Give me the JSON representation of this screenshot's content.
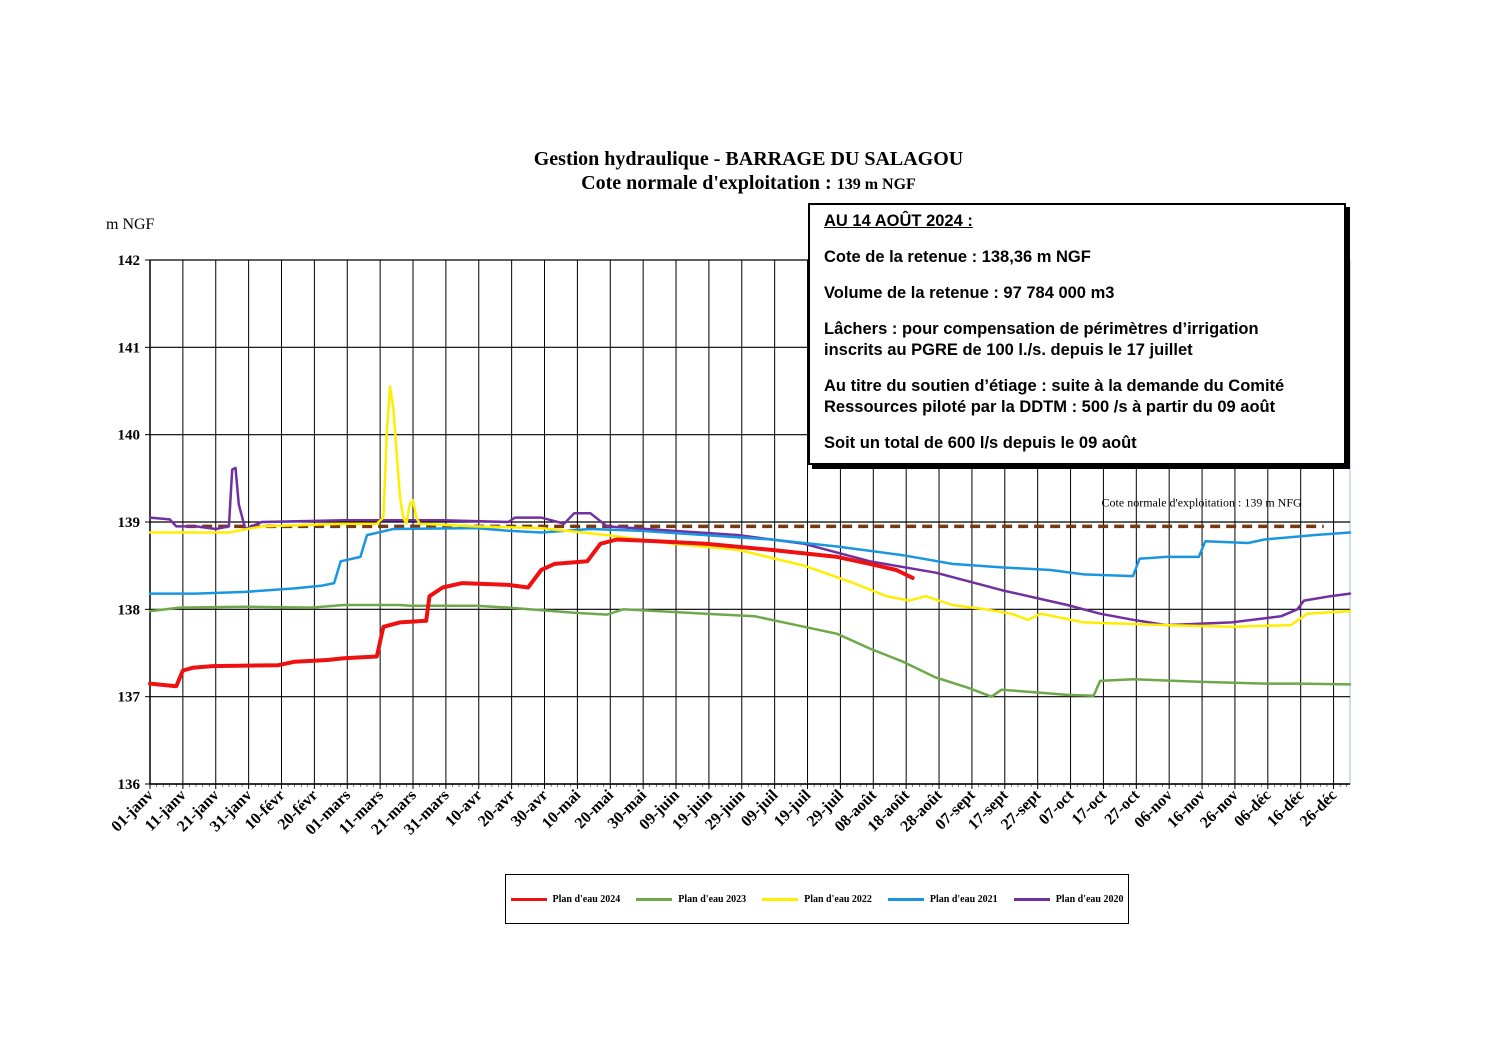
{
  "title": {
    "line1": "Gestion hydraulique - BARRAGE DU SALAGOU",
    "line2": "Cote normale d'exploitation : ",
    "line2_small": "139 m NGF"
  },
  "info_box": {
    "header": "AU 14 AOÛT 2024 :",
    "cote": "Cote de la retenue : 138,36 m NGF",
    "volume": "Volume de la retenue : 97 784 000 m3",
    "lachers_1": "Lâchers : pour compensation de périmètres d’irrigation",
    "lachers_2": "inscrits au PGRE de 100 l./s. depuis le 17 juillet",
    "soutien_1": "Au titre du soutien d’étiage : suite à la demande du Comité",
    "soutien_2": "Ressources piloté par la DDTM : 500 /s à partir du 09 août",
    "total": "Soit un total de 600 l/s depuis le 09 août"
  },
  "chart_data": {
    "type": "line",
    "title": "Gestion hydraulique - BARRAGE DU SALAGOU",
    "subtitle": "Cote normale d'exploitation : 139 m NGF",
    "ylabel": "m NGF",
    "xlabel": "",
    "ylim": [
      136,
      142
    ],
    "yticks": [
      136,
      137,
      138,
      139,
      140,
      141,
      142
    ],
    "xlim_day": [
      1,
      366
    ],
    "x_tick_labels": [
      "01-janv",
      "11-janv",
      "21-janv",
      "31-janv",
      "10-févr",
      "20-févr",
      "01-mars",
      "11-mars",
      "21-mars",
      "31-mars",
      "10-avr",
      "20-avr",
      "30-avr",
      "10-mai",
      "20-mai",
      "30-mai",
      "09-juin",
      "19-juin",
      "29-juin",
      "09-juil",
      "19-juil",
      "29-juil",
      "08-août",
      "18-août",
      "28-août",
      "07-sept",
      "17-sept",
      "27-sept",
      "07-oct",
      "17-oct",
      "27-oct",
      "06-nov",
      "16-nov",
      "26-nov",
      "06-déc",
      "16-déc",
      "26-déc"
    ],
    "grid": true,
    "legend_position": "bottom",
    "reference_line": {
      "label": "Cote normale d'exploitation : 139 m NFG",
      "value": 138.95,
      "x_start_day": 12,
      "x_end_day": 358,
      "color": "#7a3a10"
    },
    "series": [
      {
        "name": "Plan d'eau 2024",
        "color": "#ee1111",
        "width": 4,
        "points": [
          [
            1,
            137.15
          ],
          [
            9,
            137.12
          ],
          [
            11,
            137.3
          ],
          [
            14,
            137.33
          ],
          [
            20,
            137.35
          ],
          [
            40,
            137.36
          ],
          [
            45,
            137.4
          ],
          [
            55,
            137.42
          ],
          [
            60,
            137.44
          ],
          [
            70,
            137.46
          ],
          [
            72,
            137.8
          ],
          [
            77,
            137.85
          ],
          [
            85,
            137.87
          ],
          [
            86,
            138.15
          ],
          [
            90,
            138.25
          ],
          [
            96,
            138.3
          ],
          [
            110,
            138.28
          ],
          [
            116,
            138.25
          ],
          [
            120,
            138.45
          ],
          [
            124,
            138.52
          ],
          [
            134,
            138.55
          ],
          [
            138,
            138.75
          ],
          [
            143,
            138.8
          ],
          [
            155,
            138.78
          ],
          [
            170,
            138.75
          ],
          [
            190,
            138.68
          ],
          [
            210,
            138.6
          ],
          [
            220,
            138.52
          ],
          [
            228,
            138.45
          ],
          [
            233,
            138.36
          ]
        ]
      },
      {
        "name": "Plan d'eau 2023",
        "color": "#6fa84a",
        "width": 2.5,
        "points": [
          [
            1,
            137.98
          ],
          [
            10,
            138.02
          ],
          [
            30,
            138.03
          ],
          [
            50,
            138.02
          ],
          [
            60,
            138.05
          ],
          [
            77,
            138.05
          ],
          [
            80,
            138.04
          ],
          [
            100,
            138.04
          ],
          [
            110,
            138.02
          ],
          [
            130,
            137.96
          ],
          [
            140,
            137.94
          ],
          [
            145,
            138
          ],
          [
            170,
            137.95
          ],
          [
            185,
            137.92
          ],
          [
            195,
            137.84
          ],
          [
            210,
            137.72
          ],
          [
            220,
            137.55
          ],
          [
            230,
            137.4
          ],
          [
            240,
            137.22
          ],
          [
            250,
            137.1
          ],
          [
            257,
            137
          ],
          [
            260,
            137.08
          ],
          [
            270,
            137.05
          ],
          [
            280,
            137.02
          ],
          [
            288,
            137.01
          ],
          [
            290,
            137.18
          ],
          [
            300,
            137.2
          ],
          [
            320,
            137.17
          ],
          [
            340,
            137.15
          ],
          [
            350,
            137.15
          ],
          [
            366,
            137.14
          ]
        ]
      },
      {
        "name": "Plan d'eau 2022",
        "color": "#ffee00",
        "width": 2.5,
        "points": [
          [
            1,
            138.88
          ],
          [
            20,
            138.88
          ],
          [
            25,
            138.88
          ],
          [
            35,
            138.95
          ],
          [
            60,
            138.98
          ],
          [
            70,
            138.98
          ],
          [
            72,
            139.05
          ],
          [
            73,
            140
          ],
          [
            74,
            140.55
          ],
          [
            75,
            140.3
          ],
          [
            76,
            139.8
          ],
          [
            77,
            139.3
          ],
          [
            78,
            139.05
          ],
          [
            79,
            138.98
          ],
          [
            80,
            139.2
          ],
          [
            81,
            139.25
          ],
          [
            82,
            139.05
          ],
          [
            83,
            138.98
          ],
          [
            100,
            138.95
          ],
          [
            120,
            138.93
          ],
          [
            140,
            138.85
          ],
          [
            160,
            138.75
          ],
          [
            180,
            138.68
          ],
          [
            200,
            138.5
          ],
          [
            215,
            138.3
          ],
          [
            225,
            138.15
          ],
          [
            232,
            138.1
          ],
          [
            237,
            138.15
          ],
          [
            245,
            138.05
          ],
          [
            255,
            138.0
          ],
          [
            263,
            137.95
          ],
          [
            268,
            137.88
          ],
          [
            272,
            137.95
          ],
          [
            285,
            137.85
          ],
          [
            310,
            137.82
          ],
          [
            330,
            137.8
          ],
          [
            348,
            137.82
          ],
          [
            353,
            137.95
          ],
          [
            366,
            137.98
          ]
        ]
      },
      {
        "name": "Plan d'eau 2021",
        "color": "#1a96e0",
        "width": 2.5,
        "points": [
          [
            1,
            138.18
          ],
          [
            15,
            138.18
          ],
          [
            30,
            138.2
          ],
          [
            45,
            138.24
          ],
          [
            53,
            138.27
          ],
          [
            57,
            138.3
          ],
          [
            59,
            138.55
          ],
          [
            65,
            138.6
          ],
          [
            67,
            138.85
          ],
          [
            75,
            138.92
          ],
          [
            100,
            138.93
          ],
          [
            110,
            138.9
          ],
          [
            120,
            138.88
          ],
          [
            135,
            138.92
          ],
          [
            150,
            138.9
          ],
          [
            170,
            138.85
          ],
          [
            190,
            138.8
          ],
          [
            210,
            138.72
          ],
          [
            230,
            138.62
          ],
          [
            245,
            138.52
          ],
          [
            260,
            138.48
          ],
          [
            275,
            138.45
          ],
          [
            285,
            138.4
          ],
          [
            300,
            138.38
          ],
          [
            302,
            138.58
          ],
          [
            310,
            138.6
          ],
          [
            320,
            138.6
          ],
          [
            322,
            138.78
          ],
          [
            335,
            138.76
          ],
          [
            340,
            138.8
          ],
          [
            355,
            138.85
          ],
          [
            366,
            138.88
          ]
        ]
      },
      {
        "name": "Plan d'eau 2020",
        "color": "#7030a0",
        "width": 2.5,
        "points": [
          [
            1,
            139.05
          ],
          [
            7,
            139.03
          ],
          [
            9,
            138.95
          ],
          [
            15,
            138.95
          ],
          [
            21,
            138.92
          ],
          [
            25,
            138.95
          ],
          [
            26,
            139.6
          ],
          [
            27,
            139.62
          ],
          [
            28,
            139.2
          ],
          [
            30,
            138.92
          ],
          [
            35,
            139
          ],
          [
            60,
            139.02
          ],
          [
            90,
            139.02
          ],
          [
            110,
            139.0
          ],
          [
            112,
            139.05
          ],
          [
            120,
            139.05
          ],
          [
            127,
            138.98
          ],
          [
            130,
            139.1
          ],
          [
            135,
            139.1
          ],
          [
            140,
            138.95
          ],
          [
            160,
            138.9
          ],
          [
            180,
            138.85
          ],
          [
            200,
            138.75
          ],
          [
            220,
            138.55
          ],
          [
            240,
            138.42
          ],
          [
            260,
            138.22
          ],
          [
            280,
            138.05
          ],
          [
            290,
            137.95
          ],
          [
            300,
            137.88
          ],
          [
            310,
            137.82
          ],
          [
            330,
            137.85
          ],
          [
            345,
            137.92
          ],
          [
            350,
            138.0
          ],
          [
            352,
            138.1
          ],
          [
            360,
            138.15
          ],
          [
            366,
            138.18
          ]
        ]
      }
    ]
  }
}
